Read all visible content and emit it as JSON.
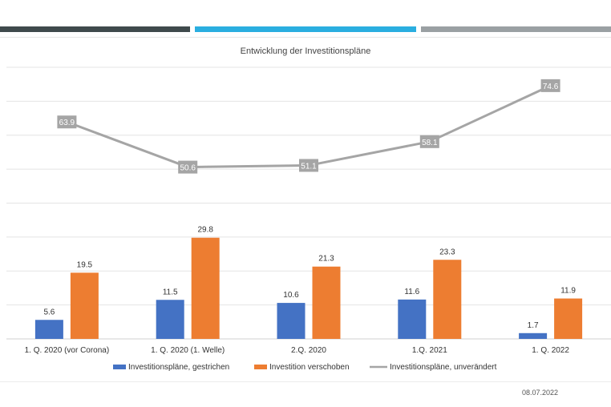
{
  "header": {
    "stripe_colors": [
      "#3f4a4c",
      "#2aaee0",
      "#9aa0a3"
    ]
  },
  "chart_data": {
    "type": "bar",
    "title": "Entwicklung der Investitionspläne",
    "categories": [
      "1. Q. 2020 (vor Corona)",
      "1. Q. 2020 (1. Welle)",
      "2.Q. 2020",
      "1.Q. 2021",
      "1. Q. 2022"
    ],
    "ylim": [
      0,
      80
    ],
    "grid": true,
    "legend_position": "bottom",
    "series": [
      {
        "name": "Investitionspläne, gestrichen",
        "kind": "bar",
        "color": "#4472c4",
        "values": [
          5.6,
          11.5,
          10.6,
          11.6,
          1.7
        ]
      },
      {
        "name": "Investition verschoben",
        "kind": "bar",
        "color": "#ed7d31",
        "values": [
          19.5,
          29.8,
          21.3,
          23.3,
          11.9
        ]
      },
      {
        "name": "Investitionspläne, unverändert",
        "kind": "line",
        "color": "#a5a5a5",
        "values": [
          63.9,
          50.6,
          51.1,
          58.1,
          74.6
        ]
      }
    ]
  },
  "footer": {
    "date": "08.07.2022"
  }
}
